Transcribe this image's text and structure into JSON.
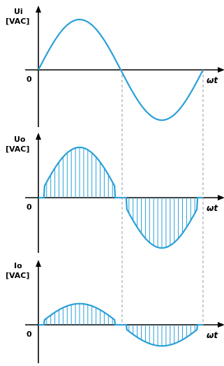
{
  "colors": {
    "waveform": "#2aa0d8",
    "axis": "#000000",
    "guide": "#9a9a9a"
  },
  "panels": [
    {
      "id": "ui",
      "ylabel_top": "Ui",
      "ylabel_unit": "[VAC]",
      "origin_label": "0",
      "x_label": "ωt",
      "amplitude": 1.0,
      "style": "full-sine"
    },
    {
      "id": "uo",
      "ylabel_top": "Uo",
      "ylabel_unit": "[VAC]",
      "origin_label": "0",
      "x_label": "ωt",
      "amplitude": 1.0,
      "style": "chopped",
      "threshold": 0.23
    },
    {
      "id": "io",
      "ylabel_top": "Io",
      "ylabel_unit": "[VAC]",
      "origin_label": "0",
      "x_label": "ωt",
      "amplitude": 0.42,
      "style": "chopped",
      "threshold": 0.23
    }
  ]
}
